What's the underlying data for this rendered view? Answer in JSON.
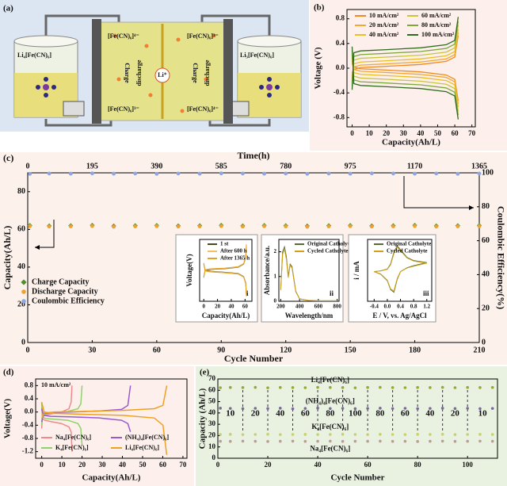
{
  "schematic": {
    "panel": "(a)",
    "left_tank": "Li₄[Fe(CN)₆]",
    "right_tank": "Li₃[Fe(CN)₆]",
    "left_top": "[Fe(CN)₆]⁴⁻",
    "left_bottom": "[Fe(CN)₆]³⁻",
    "right_top": "[Fe(CN)₆]³⁻",
    "right_bottom": "[Fe(CN)₆]⁴⁻",
    "charge": "Charge",
    "discharge": "discharge",
    "ion": "Li⁺"
  },
  "chart_data": [
    {
      "type": "line",
      "panel": "(b)",
      "xlabel": "Capacity(Ah/L)",
      "ylabel": "Voltage (V)",
      "xlim": [
        -3,
        72
      ],
      "ylim": [
        -0.95,
        0.95
      ],
      "xticks": [
        0,
        10,
        20,
        30,
        40,
        50,
        60,
        70
      ],
      "yticks": [
        0.8,
        0.4,
        {
          "value": 0,
          "label": "0.0"
        },
        -0.4,
        -0.8
      ],
      "x": [
        0,
        1,
        5,
        20,
        40,
        55,
        60,
        62
      ],
      "series": [
        {
          "name": "10 mA/cm²",
          "color": "#f08a1c",
          "charge": [
            -0.08,
            -0.02,
            0.01,
            0.03,
            0.06,
            0.11,
            0.18,
            0.53
          ],
          "discharge": [
            0.08,
            0.02,
            -0.01,
            -0.03,
            -0.06,
            -0.11,
            -0.18,
            -0.53
          ]
        },
        {
          "name": "20 mA/cm²",
          "color": "#f5a830",
          "charge": [
            -0.12,
            0.02,
            0.05,
            0.07,
            0.1,
            0.15,
            0.22,
            0.58
          ],
          "discharge": [
            0.12,
            -0.02,
            -0.05,
            -0.07,
            -0.1,
            -0.15,
            -0.22,
            -0.58
          ]
        },
        {
          "name": "40 mA/cm²",
          "color": "#e8c020",
          "charge": [
            -0.17,
            0.07,
            0.1,
            0.12,
            0.15,
            0.2,
            0.27,
            0.63
          ],
          "discharge": [
            0.17,
            -0.07,
            -0.1,
            -0.12,
            -0.15,
            -0.2,
            -0.27,
            -0.63
          ]
        },
        {
          "name": "60 mA/cm²",
          "color": "#c9c43a",
          "charge": [
            -0.23,
            0.13,
            0.16,
            0.18,
            0.21,
            0.26,
            0.33,
            0.7
          ],
          "discharge": [
            0.23,
            -0.13,
            -0.16,
            -0.18,
            -0.21,
            -0.26,
            -0.33,
            -0.7
          ]
        },
        {
          "name": "80 mA/cm²",
          "color": "#7da83a",
          "charge": [
            -0.29,
            0.19,
            0.22,
            0.24,
            0.27,
            0.32,
            0.39,
            0.76
          ],
          "discharge": [
            0.29,
            -0.19,
            -0.22,
            -0.24,
            -0.27,
            -0.32,
            -0.39,
            -0.76
          ]
        },
        {
          "name": "100 mA/cm²",
          "color": "#2e6b1f",
          "charge": [
            -0.35,
            0.25,
            0.28,
            0.3,
            0.33,
            0.38,
            0.45,
            0.83
          ],
          "discharge": [
            0.35,
            -0.25,
            -0.28,
            -0.3,
            -0.33,
            -0.38,
            -0.45,
            -0.83
          ]
        }
      ]
    },
    {
      "type": "scatter",
      "panel": "(c)",
      "xlabel": "Cycle Number",
      "x2label": "Time(h)",
      "ylabel": "Capacity(Ah/L)",
      "y2label": "Coulombic Efficiency(%)",
      "xlim": [
        0,
        210
      ],
      "x2lim": [
        0,
        1365
      ],
      "ylim": [
        0,
        90
      ],
      "y2lim": [
        0,
        100
      ],
      "xticks": [
        0,
        30,
        60,
        90,
        120,
        150,
        180,
        210
      ],
      "x2ticks": [
        0,
        195,
        390,
        585,
        780,
        975,
        1170,
        1365
      ],
      "yticks": [
        0,
        20,
        40,
        60,
        80
      ],
      "y2ticks": [
        0,
        20,
        40,
        60,
        80,
        100
      ],
      "x": [
        1,
        10,
        20,
        30,
        40,
        50,
        60,
        70,
        80,
        90,
        100,
        110,
        120,
        130,
        140,
        150,
        160,
        170,
        180,
        190,
        200,
        210
      ],
      "series": [
        {
          "name": "Charge Capacity",
          "color": "#4f8f2f",
          "marker": "diamond",
          "values": [
            62.1,
            61.9,
            62.0,
            62.2,
            61.8,
            62.0,
            62.1,
            61.9,
            62.0,
            62.2,
            61.9,
            62.1,
            62.0,
            61.8,
            62.0,
            62.1,
            61.9,
            62.0,
            62.2,
            61.9,
            62.0,
            62.1
          ]
        },
        {
          "name": "Discharge Capacity",
          "color": "#f0a030",
          "marker": "circle",
          "values": [
            61.7,
            61.5,
            61.6,
            61.8,
            61.4,
            61.6,
            61.7,
            61.5,
            61.6,
            61.8,
            61.5,
            61.7,
            61.6,
            61.4,
            61.6,
            61.7,
            61.5,
            61.6,
            61.8,
            61.5,
            61.6,
            61.7
          ]
        },
        {
          "name": "Coulombic Efficiency",
          "color": "#8ea6e0",
          "marker": "circle",
          "axis": "y2",
          "values": [
            99.4,
            99.6,
            99.5,
            99.7,
            99.5,
            99.6,
            99.4,
            99.6,
            99.5,
            99.7,
            99.6,
            99.5,
            99.6,
            99.4,
            99.6,
            99.5,
            99.7,
            99.6,
            99.5,
            99.6,
            99.4,
            99.6
          ]
        }
      ]
    },
    {
      "type": "line",
      "panel": "i",
      "xlabel": "Capacity(Ah/L)",
      "ylabel": "Voltage(V)",
      "xlim": [
        -6,
        70
      ],
      "ylim": [
        -1,
        1
      ],
      "xticks": [
        0,
        20,
        40,
        60
      ],
      "x": [
        0,
        2,
        10,
        30,
        50,
        58,
        61,
        62
      ],
      "series": [
        {
          "name": "1 st",
          "color": "#4a4a20",
          "charge": [
            -0.2,
            0.0,
            0.03,
            0.05,
            0.1,
            0.2,
            0.4,
            0.8
          ],
          "discharge": [
            0.2,
            0.0,
            -0.03,
            -0.06,
            -0.1,
            -0.2,
            -0.4,
            -0.8
          ]
        },
        {
          "name": "After 600 h",
          "color": "#f5c060",
          "charge": [
            -0.22,
            0.01,
            0.04,
            0.06,
            0.11,
            0.21,
            0.42,
            0.82
          ],
          "discharge": [
            0.22,
            -0.01,
            -0.04,
            -0.07,
            -0.11,
            -0.21,
            -0.42,
            -0.82
          ]
        },
        {
          "name": "After 1365 h",
          "color": "#e8a020",
          "charge": [
            -0.24,
            0.02,
            0.05,
            0.07,
            0.12,
            0.22,
            0.44,
            0.84
          ],
          "discharge": [
            0.24,
            -0.02,
            -0.05,
            -0.08,
            -0.12,
            -0.22,
            -0.44,
            -0.84
          ]
        }
      ]
    },
    {
      "type": "line",
      "panel": "ii",
      "xlabel": "Wavelength/nm",
      "ylabel": "Absorbance/a.u.",
      "xlim": [
        180,
        820
      ],
      "ylim": [
        0,
        2.5
      ],
      "xticks": [
        200,
        400,
        600,
        800
      ],
      "yticks": [
        0,
        1,
        2
      ],
      "x": [
        200,
        220,
        240,
        260,
        280,
        300,
        320,
        340,
        360,
        400,
        500,
        600,
        800
      ],
      "series": [
        {
          "name": "Original Catholyte",
          "color": "#556b2f",
          "values": [
            0.5,
            2.0,
            2.2,
            1.8,
            1.0,
            1.5,
            1.4,
            0.9,
            0.4,
            0.1,
            0.03,
            0.02,
            0.02
          ]
        },
        {
          "name": "Cycled Catholyte",
          "color": "#d4a017",
          "values": [
            0.45,
            1.9,
            2.1,
            1.7,
            0.95,
            1.45,
            1.35,
            0.85,
            0.38,
            0.1,
            0.03,
            0.02,
            0.02
          ]
        }
      ]
    },
    {
      "type": "line",
      "panel": "iii",
      "xlabel": "E / V, vs. Ag/AgCl",
      "ylabel": "i / mA",
      "xlim": [
        -0.6,
        1.35
      ],
      "ylim": [
        -1.2,
        1.2
      ],
      "xticks": [
        -0.4,
        {
          "value": 0,
          "label": "0.0"
        },
        0.4,
        0.8,
        1.2
      ],
      "x": [
        -0.4,
        -0.2,
        0,
        0.1,
        0.2,
        0.3,
        0.4,
        0.6,
        0.8,
        1.2,
        1.2,
        0.8,
        0.6,
        0.4,
        0.3,
        0.2,
        0.1,
        0,
        -0.2,
        -0.4
      ],
      "series": [
        {
          "name": "Original Catholyte",
          "color": "#556b2f",
          "values": [
            -0.05,
            -0.02,
            0.05,
            0.25,
            0.7,
            0.95,
            0.8,
            0.5,
            0.38,
            0.3,
            0.3,
            0.18,
            0.1,
            -0.05,
            -0.35,
            -0.85,
            -0.75,
            -0.4,
            -0.15,
            -0.05
          ]
        },
        {
          "name": "Cycled Catholyte",
          "color": "#d4a017",
          "values": [
            -0.05,
            -0.02,
            0.04,
            0.22,
            0.65,
            0.9,
            0.76,
            0.48,
            0.36,
            0.28,
            0.28,
            0.16,
            0.09,
            -0.05,
            -0.32,
            -0.8,
            -0.72,
            -0.38,
            -0.14,
            -0.05
          ]
        }
      ]
    },
    {
      "type": "line",
      "panel": "(d)",
      "xlabel": "Capacity(Ah/L)",
      "ylabel": "Voltage(V)",
      "annotation": "10 mA/cm²",
      "xlim": [
        -3,
        72
      ],
      "ylim": [
        -1.4,
        1.0
      ],
      "xticks": [
        0,
        10,
        20,
        30,
        40,
        50,
        60,
        70
      ],
      "yticks": [
        0.8,
        0.4,
        {
          "value": 0,
          "label": "0.0"
        },
        -0.4,
        -0.8,
        -1.2
      ],
      "series": [
        {
          "name": "Na₄[Fe(CN)₆]",
          "color": "#f08a8a",
          "x": [
            0,
            0.3,
            1.5,
            5.3,
            9.8,
            13.5,
            14.6,
            15
          ],
          "charge": [
            -0.5,
            -0.15,
            -0.1,
            -0.05,
            0.0,
            0.1,
            0.3,
            0.8
          ],
          "discharge": [
            0.3,
            -0.2,
            -0.25,
            -0.3,
            -0.35,
            -0.45,
            -0.6,
            -1.2
          ]
        },
        {
          "name": "K₄[Fe(CN)₆]",
          "color": "#8fd16a",
          "x": [
            0,
            0.4,
            2,
            7,
            13,
            18,
            19.4,
            20
          ],
          "charge": [
            -0.4,
            -0.1,
            -0.05,
            -0.02,
            0.02,
            0.1,
            0.25,
            0.8
          ],
          "discharge": [
            0.3,
            -0.15,
            -0.2,
            -0.22,
            -0.25,
            -0.35,
            -0.5,
            -1.0
          ]
        },
        {
          "name": "(NH₄)₄[Fe(CN)₆]",
          "color": "#9b59d0",
          "x": [
            0,
            0.9,
            4.4,
            15.4,
            28.6,
            39.6,
            42.7,
            44
          ],
          "charge": [
            -0.3,
            -0.05,
            -0.02,
            0.0,
            0.03,
            0.08,
            0.2,
            0.8
          ],
          "discharge": [
            0.1,
            -0.1,
            -0.13,
            -0.15,
            -0.18,
            -0.25,
            -0.35,
            -0.6
          ]
        },
        {
          "name": "Li₄[Fe(CN)₆]",
          "color": "#f0a020",
          "x": [
            0,
            1.2,
            6.2,
            21.7,
            40.3,
            55.8,
            60.1,
            62
          ],
          "charge": [
            -0.2,
            -0.03,
            0.0,
            0.02,
            0.05,
            0.1,
            0.2,
            0.8
          ],
          "discharge": [
            0.3,
            0.0,
            -0.04,
            -0.07,
            -0.1,
            -0.18,
            -0.4,
            -1.3
          ]
        }
      ]
    },
    {
      "type": "scatter",
      "panel": "(e)",
      "xlabel": "Cycle Number",
      "ylabel": "Capacity (Ah/L)",
      "xlim": [
        0,
        112
      ],
      "ylim": [
        0,
        70
      ],
      "xticks": [
        0,
        20,
        40,
        60,
        80,
        100
      ],
      "yticks": [
        0,
        10,
        20,
        30,
        40,
        50,
        60,
        70
      ],
      "rate_changes": [
        10,
        20,
        30,
        40,
        50,
        60,
        70,
        80,
        90,
        100
      ],
      "rates": [
        10,
        20,
        40,
        60,
        80,
        100,
        80,
        60,
        40,
        20,
        10
      ],
      "x": [
        1,
        5,
        10,
        15,
        20,
        25,
        30,
        35,
        40,
        45,
        50,
        55,
        60,
        65,
        70,
        75,
        80,
        85,
        90,
        95,
        100,
        105,
        110
      ],
      "series": [
        {
          "name": "Li₄[Fe(CN)₆]",
          "color": "#9aa830",
          "marker": "circle",
          "values": [
            62.3,
            62.5,
            62.4,
            62.6,
            62.2,
            62.5,
            62.4,
            62.3,
            62.6,
            62.5,
            62.4,
            62.2,
            62.5,
            62.6,
            62.4,
            62.3,
            62.5,
            62.4,
            62.6,
            62.3,
            62.5,
            62.4,
            62.5
          ]
        },
        {
          "name": "(NH₄)₄[Fe(CN)₆]",
          "color": "#7a6a9a",
          "marker": "circle",
          "values": [
            44.2,
            44.0,
            43.8,
            44.1,
            43.9,
            44.2,
            43.7,
            44.0,
            44.3,
            43.9,
            44.1,
            43.8,
            44.0,
            44.2,
            43.9,
            44.1,
            43.8,
            44.0,
            44.2,
            43.9,
            44.1,
            43.8,
            44.0
          ]
        },
        {
          "name": "K₄[Fe(CN)₆]",
          "color": "#c8d070",
          "marker": "circle",
          "values": [
            21.0,
            21.1,
            20.9,
            21.0,
            21.2,
            20.9,
            21.0,
            21.1,
            20.9,
            21.0,
            21.2,
            21.0,
            20.9,
            21.1,
            21.0,
            20.9,
            21.1,
            21.0,
            21.2,
            20.9,
            21.0,
            21.1,
            21.0
          ]
        },
        {
          "name": "Na₄[Fe(CN)₆]",
          "color": "#c09a9a",
          "marker": "circle",
          "values": [
            15.0,
            14.9,
            15.1,
            15.0,
            14.8,
            15.0,
            15.1,
            14.9,
            15.0,
            15.1,
            14.9,
            15.0,
            15.0,
            15.1,
            14.9,
            15.0,
            14.8,
            15.0,
            15.1,
            14.9,
            15.0,
            15.1,
            15.0
          ]
        }
      ]
    }
  ]
}
